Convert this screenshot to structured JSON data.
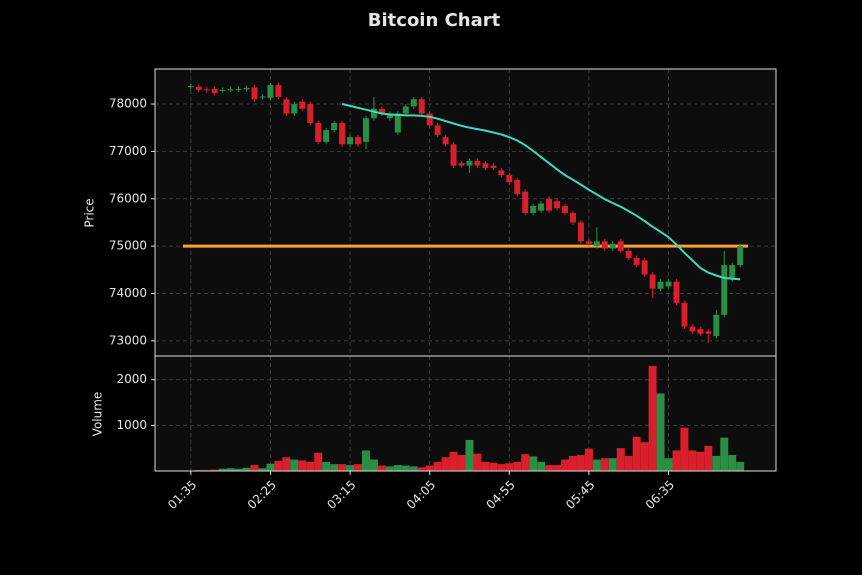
{
  "chart_data": {
    "type": "candlestick",
    "title": "Bitcoin Chart",
    "ylabel": "Price",
    "categories": [
      "01:35",
      null,
      null,
      null,
      null,
      null,
      null,
      null,
      null,
      null,
      "02:25",
      null,
      null,
      null,
      null,
      null,
      null,
      null,
      null,
      null,
      "03:15",
      null,
      null,
      null,
      null,
      null,
      null,
      null,
      null,
      null,
      "04:05",
      null,
      null,
      null,
      null,
      null,
      null,
      null,
      null,
      null,
      "04:55",
      null,
      null,
      null,
      null,
      null,
      null,
      null,
      null,
      null,
      "05:45",
      null,
      null,
      null,
      null,
      null,
      null,
      null,
      null,
      null,
      "06:35",
      null,
      null,
      null,
      null,
      null,
      null,
      null,
      null,
      null
    ],
    "open": [
      78360,
      78360,
      78310,
      78320,
      78290,
      78300,
      78300,
      78310,
      78350,
      78150,
      78130,
      78400,
      78100,
      77800,
      78050,
      78000,
      77600,
      77200,
      77450,
      77600,
      77150,
      77300,
      77200,
      77700,
      77900,
      77700,
      77400,
      77800,
      77950,
      78100,
      77800,
      77550,
      77300,
      77150,
      76750,
      76700,
      76800,
      76750,
      76700,
      76600,
      76500,
      76400,
      76150,
      75700,
      75750,
      76000,
      75950,
      75850,
      75700,
      75500,
      75100,
      75000,
      75100,
      74950,
      75100,
      74900,
      74750,
      74700,
      74400,
      74100,
      74150,
      74250,
      73800,
      73300,
      73250,
      73200,
      73100,
      73550,
      74300,
      74600
    ],
    "high": [
      78430,
      78410,
      78360,
      78370,
      78350,
      78360,
      78370,
      78390,
      78400,
      78210,
      78450,
      78450,
      78150,
      78050,
      78100,
      78050,
      77650,
      77500,
      77650,
      77650,
      77350,
      77350,
      77750,
      78150,
      77950,
      77850,
      77850,
      78000,
      78150,
      78150,
      77850,
      77600,
      77350,
      77200,
      76800,
      76850,
      76850,
      76800,
      76750,
      76650,
      76550,
      76450,
      76200,
      75900,
      75950,
      76050,
      76000,
      75900,
      75750,
      75550,
      75150,
      75400,
      75150,
      75100,
      75150,
      74950,
      74800,
      74750,
      74450,
      74300,
      74300,
      74300,
      73850,
      73350,
      73300,
      73250,
      73650,
      74900,
      74650,
      75050
    ],
    "low": [
      78310,
      78250,
      78240,
      78180,
      78240,
      78250,
      78250,
      78260,
      78050,
      78100,
      78080,
      78100,
      77750,
      77750,
      77850,
      77550,
      77150,
      77150,
      77400,
      77100,
      77100,
      77100,
      77050,
      77650,
      77750,
      77650,
      77350,
      77750,
      77900,
      77750,
      77500,
      77300,
      77100,
      76650,
      76650,
      76550,
      76650,
      76600,
      76600,
      76450,
      76300,
      76050,
      75650,
      75650,
      75700,
      75700,
      75750,
      75650,
      75450,
      75050,
      75000,
      74950,
      74900,
      74900,
      74850,
      74700,
      74550,
      74350,
      73900,
      74050,
      74100,
      73750,
      73250,
      73150,
      73100,
      72950,
      73050,
      73500,
      74250,
      74550
    ],
    "close": [
      78380,
      78300,
      78290,
      78230,
      78300,
      78310,
      78320,
      78340,
      78100,
      78160,
      78400,
      78150,
      77800,
      78000,
      77900,
      77600,
      77200,
      77450,
      77600,
      77150,
      77300,
      77150,
      77700,
      77900,
      77800,
      77800,
      77800,
      77950,
      78100,
      77800,
      77550,
      77350,
      77150,
      76700,
      76700,
      76800,
      76700,
      76650,
      76650,
      76500,
      76350,
      76100,
      75700,
      75850,
      75900,
      75750,
      75800,
      75700,
      75500,
      75100,
      75050,
      75100,
      74950,
      75050,
      74900,
      74750,
      74600,
      74400,
      74100,
      74250,
      74250,
      73800,
      73300,
      73200,
      73150,
      73150,
      73550,
      74600,
      74600,
      75000
    ],
    "up_color": "#2a8f45",
    "down_color": "#d91f2b",
    "ylim": [
      72680,
      78740
    ],
    "yticks": [
      73000,
      74000,
      75000,
      76000,
      77000,
      78000
    ],
    "grid": true,
    "ma": {
      "color": "#40d9c0",
      "values": [
        null,
        null,
        null,
        null,
        null,
        null,
        null,
        null,
        null,
        null,
        null,
        null,
        null,
        null,
        null,
        null,
        null,
        null,
        null,
        78000,
        77960,
        77920,
        77880,
        77840,
        77800,
        77780,
        77770,
        77760,
        77760,
        77750,
        77730,
        77690,
        77640,
        77590,
        77540,
        77500,
        77470,
        77440,
        77400,
        77360,
        77300,
        77230,
        77130,
        77010,
        76880,
        76750,
        76620,
        76500,
        76400,
        76300,
        76190,
        76090,
        75990,
        75910,
        75830,
        75740,
        75640,
        75530,
        75410,
        75300,
        75190,
        75030,
        74860,
        74700,
        74540,
        74440,
        74380,
        74330,
        74310,
        74300
      ]
    },
    "hline": {
      "value": 75000,
      "color": "#ffa033"
    },
    "volume": {
      "ylabel": "Volume",
      "ylim": [
        0,
        2520
      ],
      "yticks": [
        1000,
        2000
      ],
      "values": [
        10,
        20,
        20,
        30,
        50,
        60,
        50,
        70,
        130,
        60,
        160,
        220,
        300,
        250,
        230,
        200,
        400,
        200,
        150,
        150,
        130,
        150,
        450,
        250,
        120,
        100,
        130,
        120,
        100,
        80,
        120,
        200,
        300,
        420,
        350,
        680,
        380,
        200,
        180,
        150,
        170,
        200,
        370,
        320,
        200,
        130,
        130,
        250,
        330,
        350,
        490,
        250,
        280,
        280,
        500,
        330,
        750,
        630,
        2300,
        1700,
        280,
        450,
        950,
        450,
        420,
        550,
        330,
        730,
        350,
        200
      ]
    }
  }
}
